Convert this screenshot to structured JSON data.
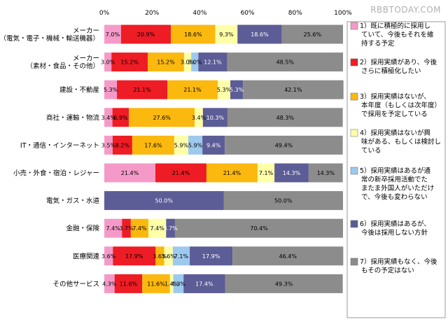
{
  "watermark": "RBBTODAY.COM",
  "chart_data": {
    "type": "bar",
    "orientation": "horizontal",
    "stacked": true,
    "xlim": [
      0,
      100
    ],
    "x_ticks": [
      "0%",
      "20%",
      "40%",
      "60%",
      "80%",
      "100%"
    ],
    "grid": false,
    "legend_position": "right",
    "categories": [
      [
        "メーカー",
        "（電気・電子・機械・輸送機器）"
      ],
      [
        "メーカー",
        "（素材・食品・その他）"
      ],
      [
        "建設・不動産"
      ],
      [
        "商社・運輸・物流"
      ],
      [
        "IT・通信・インターネット"
      ],
      [
        "小売・外食・宿泊・レジャー"
      ],
      [
        "電気・ガス・水道"
      ],
      [
        "金融・保険"
      ],
      [
        "医療関連"
      ],
      [
        "その他サービス"
      ]
    ],
    "series": [
      {
        "color": "#f59ac8",
        "legend": [
          "1）既に積極的に採用し",
          "ていて、今後もそれを維",
          "持する予定"
        ],
        "values": [
          7.0,
          3.0,
          5.3,
          3.4,
          3.5,
          21.4,
          0,
          7.4,
          3.6,
          4.3
        ]
      },
      {
        "color": "#ee1c24",
        "legend": [
          "2）採用実績があり、今後",
          "さらに積極化したい"
        ],
        "values": [
          20.9,
          15.2,
          21.1,
          6.9,
          8.2,
          21.4,
          0,
          3.7,
          17.9,
          11.6
        ]
      },
      {
        "color": "#fbb80f",
        "legend": [
          "3）採用実績はないが、",
          "本年度（もしくは次年度）",
          "で採用を予定している"
        ],
        "values": [
          18.6,
          15.2,
          21.1,
          27.6,
          17.6,
          21.4,
          0,
          7.4,
          3.6,
          11.6
        ]
      },
      {
        "color": "#ffffa8",
        "legend": [
          "4）採用実績はないが興",
          "味がある、もしくは検討し",
          "ている"
        ],
        "values": [
          9.3,
          3.0,
          5.3,
          3.4,
          5.9,
          7.1,
          0,
          7.4,
          3.6,
          1.4
        ]
      },
      {
        "color": "#9ec9ef",
        "legend": [
          "5）採用実績はあるが通",
          "常の新卒採用活動でた",
          "またま外国人がいただけ",
          "で、今後も変わらない"
        ],
        "values": [
          0,
          3.0,
          0,
          0,
          5.9,
          0,
          0,
          0,
          7.1,
          4.3
        ]
      },
      {
        "color": "#5c5c96",
        "legend": [
          "6）採用実績はあるが、",
          "今後は採用しない方針"
        ],
        "values": [
          18.6,
          12.1,
          5.3,
          10.3,
          9.4,
          14.3,
          50.0,
          3.7,
          17.9,
          17.4
        ]
      },
      {
        "color": "#8c8c8c",
        "legend": [
          "7）採用実績もなく、今後",
          "もその予定はない"
        ],
        "values": [
          25.6,
          48.5,
          42.1,
          48.3,
          49.4,
          14.3,
          50.0,
          70.4,
          46.4,
          49.3
        ]
      }
    ]
  }
}
